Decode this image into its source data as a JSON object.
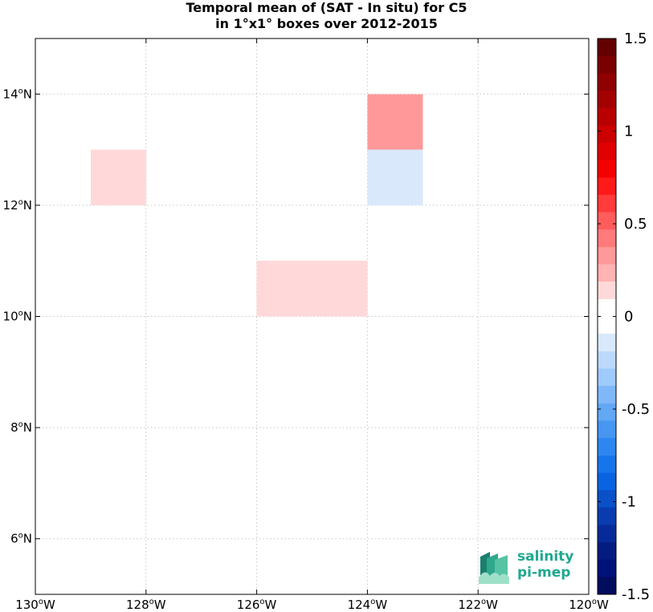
{
  "title_lines": [
    "Temporal mean of (SAT - In situ) for C5",
    "in 1°x1° boxes over 2012-2015"
  ],
  "logo": {
    "line1": "salinity",
    "line2": "pi-mep",
    "color": "#1fa88f"
  },
  "chart_data": {
    "type": "heatmap",
    "title": "Temporal mean of (SAT - In situ) for C5 in 1°x1° boxes over 2012-2015",
    "xlim": [
      -130,
      -120
    ],
    "ylim": [
      5,
      15
    ],
    "xticks": [
      -130,
      -128,
      -126,
      -124,
      -122,
      -120
    ],
    "xtick_labels": [
      "130°W",
      "128°W",
      "126°W",
      "124°W",
      "122°W",
      "120°W"
    ],
    "yticks": [
      6,
      8,
      10,
      12,
      14
    ],
    "ytick_labels": [
      "6°N",
      "8°N",
      "10°N",
      "12°N",
      "14°N"
    ],
    "grid": true,
    "cell_size_deg": 1,
    "cells": [
      {
        "lon": -129,
        "lat": 12,
        "value": 0.15
      },
      {
        "lon": -126,
        "lat": 10,
        "value": 0.15
      },
      {
        "lon": -125,
        "lat": 10,
        "value": 0.15
      },
      {
        "lon": -124,
        "lat": 13,
        "value": 0.35
      },
      {
        "lon": -124,
        "lat": 12,
        "value": -0.15
      }
    ],
    "colorbar": {
      "min": -1.5,
      "max": 1.5,
      "ticks": [
        1.5,
        1,
        0.5,
        0,
        -0.5,
        -1,
        -1.5
      ],
      "tick_labels": [
        "1.5",
        "1",
        "0.5",
        "0",
        "-0.5",
        "-1",
        "-1.5"
      ],
      "levels": 30,
      "colors_top_to_bottom": [
        "#640000",
        "#7a0000",
        "#8f0000",
        "#a30000",
        "#b80000",
        "#cc0000",
        "#e00000",
        "#f50000",
        "#ff1a1a",
        "#ff3b3b",
        "#ff5c5c",
        "#ff7a7a",
        "#ff9999",
        "#ffb3b3",
        "#ffd9d9",
        "#ffffff",
        "#ffffff",
        "#d9e9fb",
        "#bcd9fb",
        "#9ecbfb",
        "#7fb8f8",
        "#62a8f5",
        "#4696f2",
        "#2e86f0",
        "#1775ec",
        "#0a63e0",
        "#0a50c8",
        "#0a3cb0",
        "#062b98",
        "#041c80",
        "#00117a",
        "#000c5c"
      ]
    }
  }
}
